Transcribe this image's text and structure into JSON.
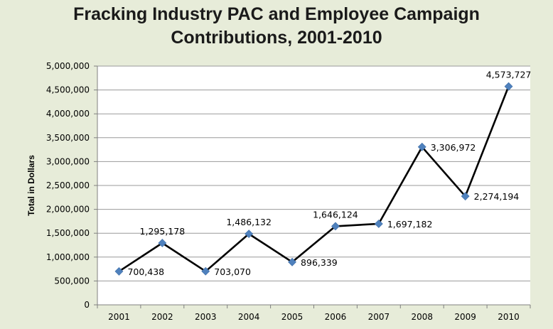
{
  "chart_data": {
    "type": "line",
    "title_line1": "Fracking Industry PAC and Employee Campaign",
    "title_line2": "Contributions, 2001-2010",
    "xlabel": "",
    "ylabel": "Total in Dollars",
    "categories": [
      "2001",
      "2002",
      "2003",
      "2004",
      "2005",
      "2006",
      "2007",
      "2008",
      "2009",
      "2010"
    ],
    "series": [
      {
        "values": [
          700438,
          1295178,
          703070,
          1486132,
          896339,
          1646124,
          1697182,
          3306972,
          2274194,
          4573727
        ],
        "labels": [
          "700,438",
          "1,295,178",
          "703,070",
          "1,486,132",
          "896,339",
          "1,646,124",
          "1,697,182",
          "3,306,972",
          "2,274,194",
          "4,573,727"
        ],
        "label_positions": [
          "right",
          "above",
          "right",
          "above",
          "right",
          "above",
          "right",
          "right",
          "right",
          "above"
        ]
      }
    ],
    "ylim": [
      0,
      5000000
    ],
    "yticks": [
      0,
      500000,
      1000000,
      1500000,
      2000000,
      2500000,
      3000000,
      3500000,
      4000000,
      4500000,
      5000000
    ],
    "ytick_labels": [
      "0",
      "500,000",
      "1,000,000",
      "1,500,000",
      "2,000,000",
      "2,500,000",
      "3,000,000",
      "3,500,000",
      "4,000,000",
      "4,500,000",
      "5,000,000"
    ],
    "grid": true,
    "colors": {
      "line": "#000000",
      "marker": "#4f81bd",
      "grid": "#9a9a9a",
      "background": "#e7ecd9",
      "plot_background": "#ffffff"
    }
  }
}
